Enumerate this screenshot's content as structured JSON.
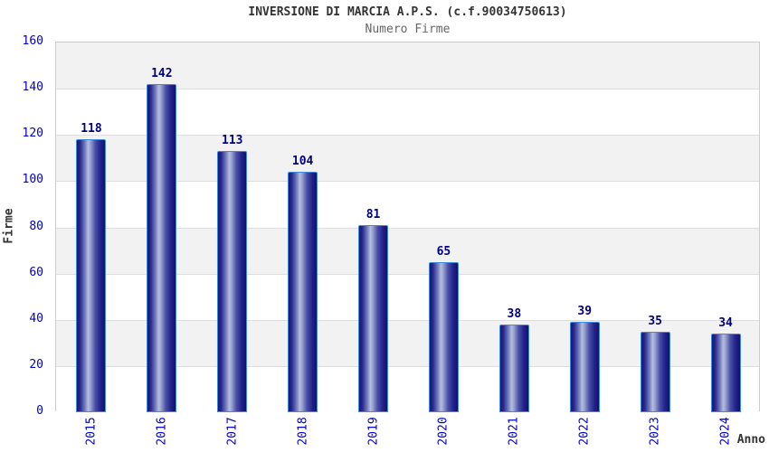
{
  "chart_data": {
    "type": "bar",
    "title": "INVERSIONE DI MARCIA A.P.S. (c.f.90034750613)",
    "subtitle": "Numero Firme",
    "xlabel": "Anno",
    "ylabel": "Firme",
    "categories": [
      "2015",
      "2016",
      "2017",
      "2018",
      "2019",
      "2020",
      "2021",
      "2022",
      "2023",
      "2024"
    ],
    "values": [
      118,
      142,
      113,
      104,
      81,
      65,
      38,
      39,
      35,
      34
    ],
    "ylim": [
      0,
      160
    ],
    "ytick_step": 20,
    "grid": "horizontal-bands-alternating",
    "legend_position": "none",
    "data_labels": "above-bars"
  },
  "colors": {
    "title": "#333333",
    "subtitle": "#666666",
    "axis_title": "#333333",
    "tick_label": "#0000cc",
    "value_label": "#000080",
    "band_gray": "#f2f2f2",
    "band_white": "#ffffff",
    "plot_border": "#cccccc",
    "gridline": "#dedede",
    "bar_dark": "#15156e",
    "bar_highlight": "#b4bcde",
    "bar_border": "#3f8ae0"
  }
}
